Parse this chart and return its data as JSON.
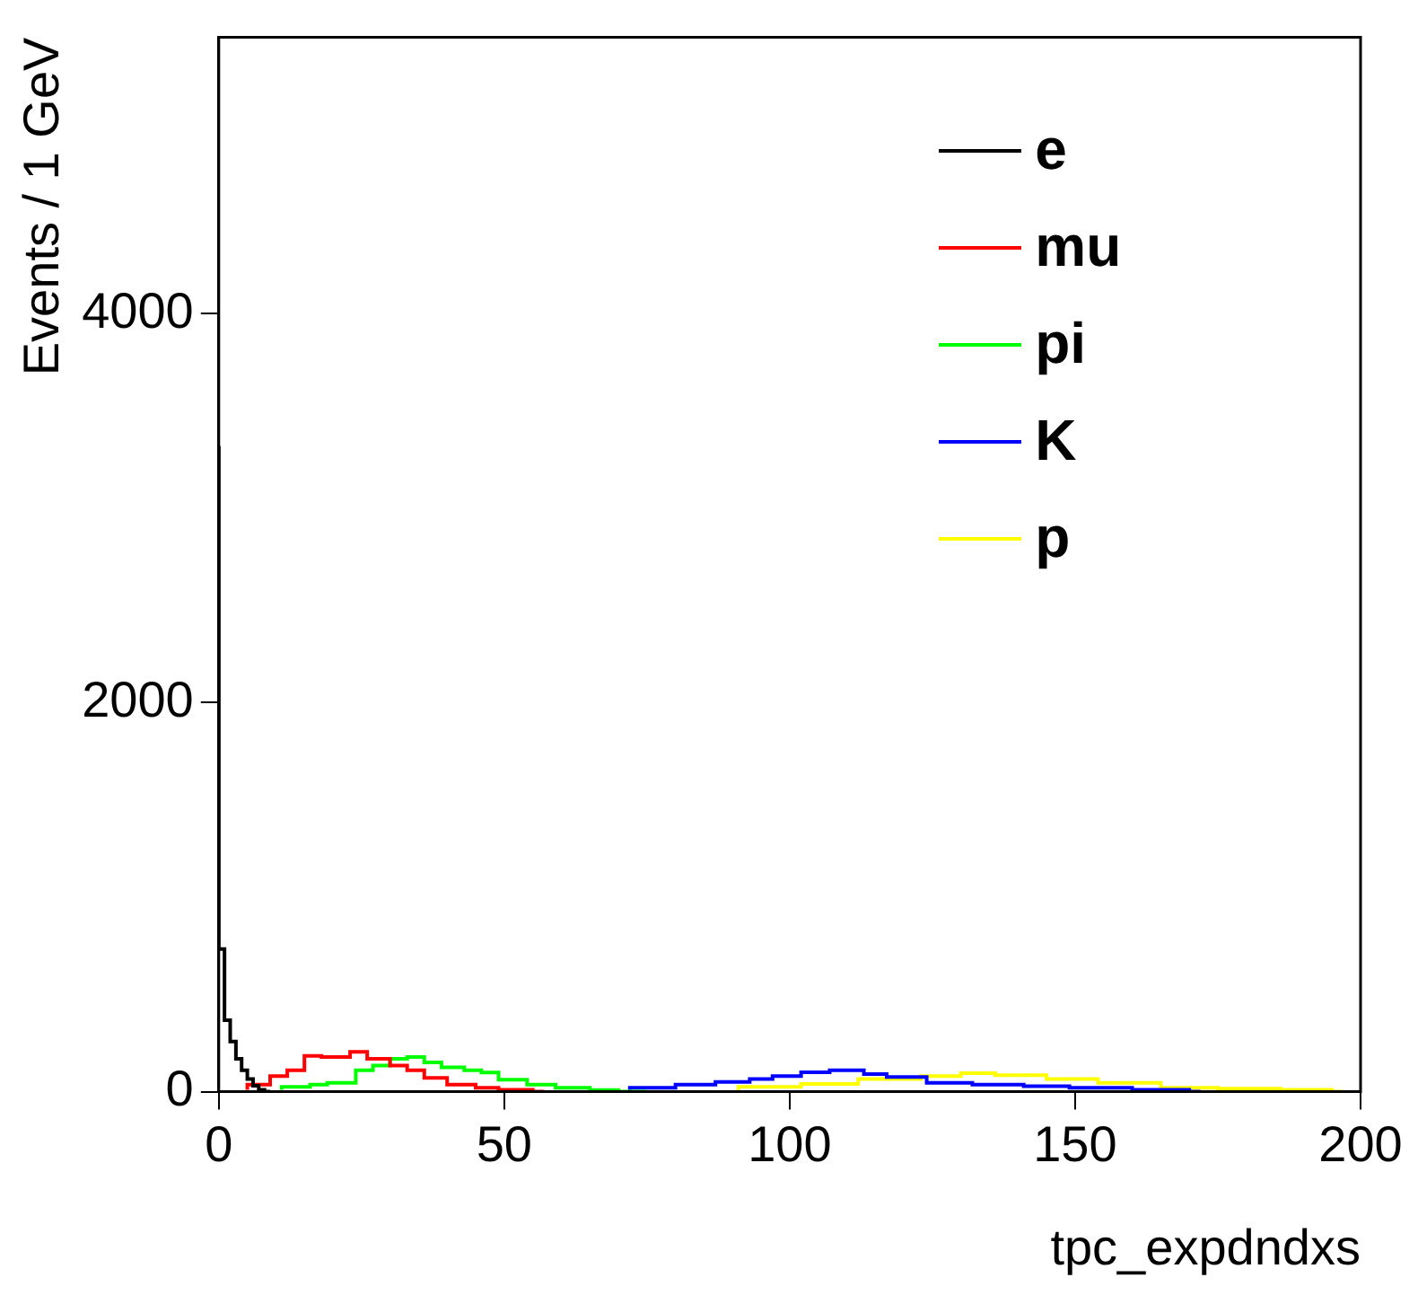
{
  "chart_data": {
    "type": "step",
    "xlabel": "tpc_expdndxs",
    "ylabel": "Events / 1 GeV",
    "xlim": [
      0,
      200
    ],
    "xticks": [
      0,
      50,
      100,
      150,
      200
    ],
    "ylim": [
      0,
      5420
    ],
    "yticks": [
      0,
      2000,
      4000
    ],
    "legend": "top right",
    "grid": false,
    "series": [
      {
        "name": "e",
        "color": "#000000",
        "x": [
          0,
          1,
          2,
          3,
          4,
          5,
          6,
          7,
          8,
          9
        ],
        "values": [
          3320,
          733,
          368,
          258,
          169,
          110,
          65,
          30,
          10,
          0
        ]
      },
      {
        "name": "mu",
        "color": "#ff0000",
        "x": [
          5,
          9,
          12,
          15,
          18,
          23,
          26,
          30,
          33,
          36,
          40,
          45,
          49,
          55,
          57
        ],
        "values": [
          10,
          36,
          80,
          110,
          184,
          178,
          205,
          169,
          134,
          110,
          71,
          36,
          20,
          10,
          0
        ]
      },
      {
        "name": "pi",
        "color": "#00ff00",
        "x": [
          11,
          16,
          19,
          24,
          27,
          30,
          33,
          36,
          39,
          43,
          46,
          49,
          54,
          59,
          65,
          70,
          75
        ],
        "values": [
          10,
          25,
          36,
          45,
          110,
          134,
          169,
          178,
          151,
          125,
          110,
          98,
          62,
          36,
          20,
          8,
          0
        ]
      },
      {
        "name": "K",
        "color": "#0000ff",
        "x": [
          72,
          80,
          87,
          93,
          97,
          102,
          107,
          113,
          117,
          124,
          132,
          141,
          149,
          160,
          170,
          172
        ],
        "values": [
          8,
          20,
          36,
          50,
          65,
          80,
          100,
          110,
          90,
          75,
          45,
          36,
          28,
          20,
          10,
          0
        ]
      },
      {
        "name": "p",
        "color": "#ffff00",
        "x": [
          91,
          102,
          112,
          123,
          130,
          136,
          145,
          154,
          165,
          175,
          186,
          195,
          197
        ],
        "values": [
          8,
          25,
          40,
          65,
          80,
          95,
          85,
          65,
          45,
          20,
          15,
          10,
          0
        ]
      }
    ]
  }
}
